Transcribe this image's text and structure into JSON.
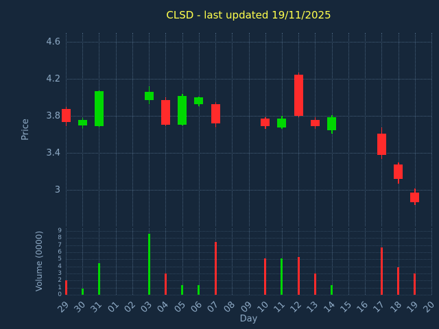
{
  "title_bar": {
    "title": "CLSD - last updated 19/11/2025"
  },
  "colors": {
    "background": "#16273a",
    "title": "#ffff4d",
    "axis_label": "#8da9c4",
    "grid": "#46607a",
    "up": "#00d800",
    "down": "#ff2b2b"
  },
  "chart_data": {
    "type": "candlestick+volume",
    "title": "CLSD - last updated 19/11/2025",
    "xlabel": "Day",
    "ylabel_price": "Price",
    "ylabel_volume": "Volume (0000)",
    "grid": true,
    "legend": "none",
    "x_ticks": [
      "29",
      "30",
      "31",
      "01",
      "02",
      "03",
      "04",
      "05",
      "06",
      "07",
      "08",
      "09",
      "10",
      "11",
      "12",
      "13",
      "14",
      "15",
      "16",
      "17",
      "18",
      "19",
      "20"
    ],
    "price_axis": {
      "min": 2.61,
      "max": 4.7,
      "ticks": [
        4.6,
        4.2,
        3.8,
        3.4,
        3
      ]
    },
    "volume_axis": {
      "min": 0,
      "max": 9.4,
      "ticks": [
        9,
        8,
        7,
        6,
        5,
        4,
        3,
        2,
        1,
        0
      ]
    },
    "candles": [
      {
        "day": "29",
        "open": 3.88,
        "high": 3.9,
        "low": 3.69,
        "close": 3.74,
        "volume": 2.0
      },
      {
        "day": "30",
        "open": 3.7,
        "high": 3.78,
        "low": 3.67,
        "close": 3.76,
        "volume": 0.9
      },
      {
        "day": "31",
        "open": 3.69,
        "high": 4.08,
        "low": 3.68,
        "close": 4.07,
        "volume": 4.5
      },
      {
        "day": "03",
        "open": 3.97,
        "high": 4.12,
        "low": 3.93,
        "close": 4.06,
        "volume": 8.6
      },
      {
        "day": "04",
        "open": 3.97,
        "high": 4.0,
        "low": 3.69,
        "close": 3.71,
        "volume": 3.0
      },
      {
        "day": "05",
        "open": 3.71,
        "high": 4.04,
        "low": 3.7,
        "close": 4.02,
        "volume": 1.4
      },
      {
        "day": "06",
        "open": 3.93,
        "high": 4.01,
        "low": 3.91,
        "close": 4.0,
        "volume": 1.4
      },
      {
        "day": "07",
        "open": 3.93,
        "high": 3.95,
        "low": 3.68,
        "close": 3.72,
        "volume": 7.5
      },
      {
        "day": "10",
        "open": 3.77,
        "high": 3.79,
        "low": 3.66,
        "close": 3.69,
        "volume": 5.1
      },
      {
        "day": "11",
        "open": 3.68,
        "high": 3.8,
        "low": 3.66,
        "close": 3.77,
        "volume": 5.1
      },
      {
        "day": "12",
        "open": 4.25,
        "high": 4.27,
        "low": 3.79,
        "close": 3.8,
        "volume": 5.3
      },
      {
        "day": "13",
        "open": 3.76,
        "high": 3.79,
        "low": 3.66,
        "close": 3.69,
        "volume": 3.0
      },
      {
        "day": "14",
        "open": 3.65,
        "high": 3.81,
        "low": 3.61,
        "close": 3.79,
        "volume": 1.4
      },
      {
        "day": "17",
        "open": 3.61,
        "high": 3.68,
        "low": 3.34,
        "close": 3.38,
        "volume": 6.7
      },
      {
        "day": "18",
        "open": 3.28,
        "high": 3.3,
        "low": 3.07,
        "close": 3.12,
        "volume": 3.9
      },
      {
        "day": "19",
        "open": 2.97,
        "high": 3.02,
        "low": 2.84,
        "close": 2.87,
        "volume": 3.0
      }
    ]
  }
}
